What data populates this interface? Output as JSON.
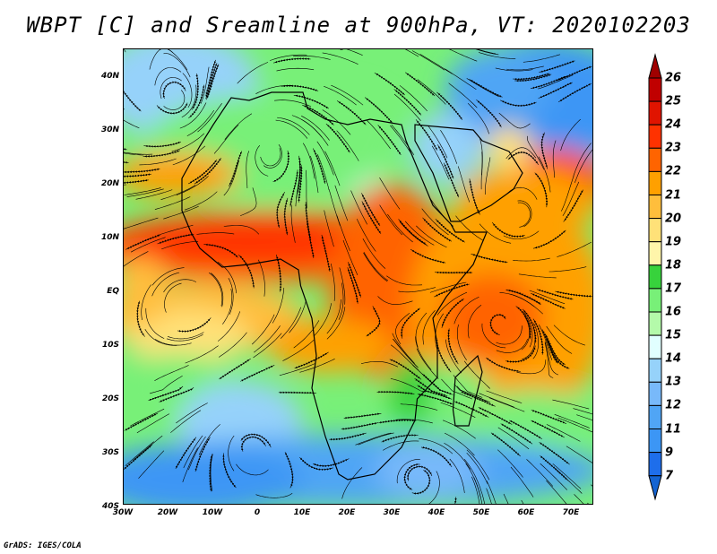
{
  "title": "WBPT [C] and Sreamline at 900hPa, VT: 2020102203",
  "x_ticks": [
    "30W",
    "20W",
    "10W",
    "0",
    "10E",
    "20E",
    "30E",
    "40E",
    "50E",
    "60E",
    "70E"
  ],
  "y_ticks": [
    "40N",
    "30N",
    "20N",
    "10N",
    "EQ",
    "10S",
    "20S",
    "30S",
    "40S"
  ],
  "colorbar": {
    "labels": [
      "26",
      "25",
      "24",
      "23",
      "22",
      "21",
      "20",
      "19",
      "18",
      "17",
      "16",
      "15",
      "14",
      "13",
      "12",
      "11",
      "9",
      "7"
    ],
    "colors": [
      "#c00000",
      "#e01400",
      "#ff3200",
      "#ff6400",
      "#ffa000",
      "#ffbe3c",
      "#ffe178",
      "#fff5aa",
      "#37d23c",
      "#78f078",
      "#b4faaa",
      "#e1ffff",
      "#96d2fa",
      "#78b9fa",
      "#50a5f5",
      "#3c96f5",
      "#1e6eeb"
    ],
    "over_color": "#a00000",
    "under_color": "#1464d2"
  },
  "credit": "GrADS: IGES/COLA"
}
